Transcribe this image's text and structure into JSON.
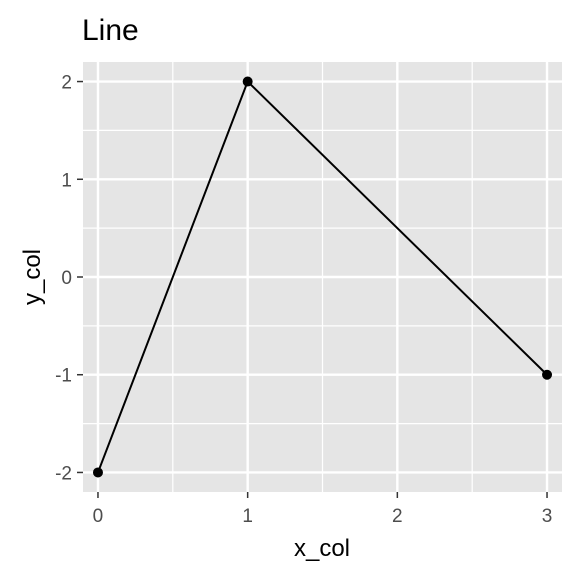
{
  "chart_data": {
    "type": "line",
    "title": "Line",
    "xlabel": "x_col",
    "ylabel": "y_col",
    "x": [
      0,
      1,
      3
    ],
    "y": [
      -2,
      2,
      -1
    ],
    "xlim": [
      -0.1,
      3.1
    ],
    "ylim": [
      -2.2,
      2.2
    ],
    "xticks": [
      0,
      1,
      2,
      3
    ],
    "xtick_labels": [
      "0",
      "1",
      "2",
      "3"
    ],
    "yticks": [
      -2,
      -1,
      0,
      1,
      2
    ],
    "ytick_labels": [
      "-2",
      "-1",
      "0",
      "1",
      "2"
    ],
    "grid": true,
    "markers": true,
    "colors": {
      "panel_background": "#e5e5e5",
      "grid": "#ffffff",
      "line": "#000000",
      "point": "#000000",
      "tick": "#333333"
    }
  }
}
